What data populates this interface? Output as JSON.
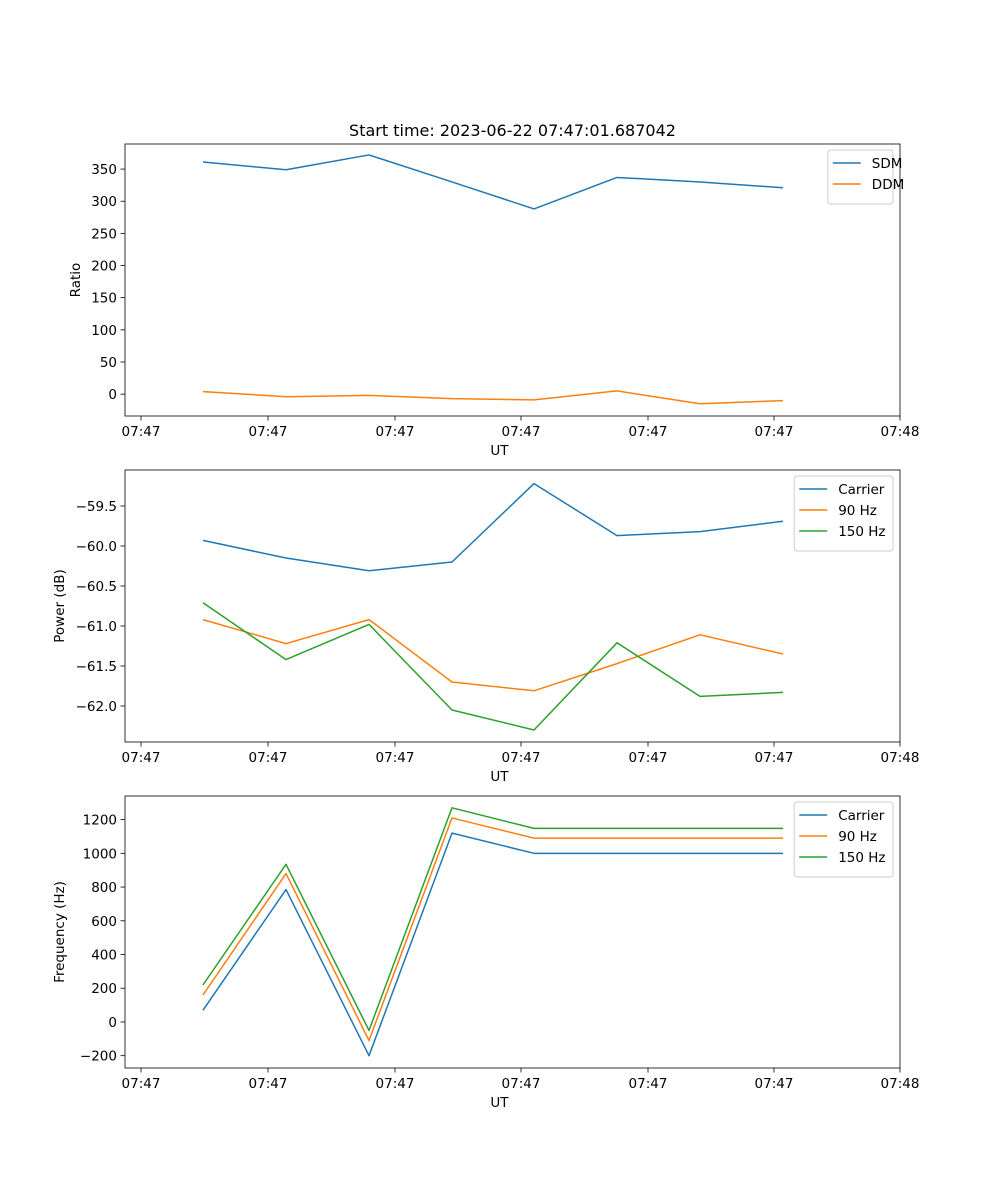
{
  "figure": {
    "title": "Start time: 2023-06-22 07:47:01.687042"
  },
  "chart_data": [
    {
      "type": "line",
      "xlabel": "UT",
      "ylabel": "Ratio",
      "x_tick_labels": [
        "07:47",
        "07:47",
        "07:47",
        "07:47",
        "07:47",
        "07:47",
        "07:48"
      ],
      "y_ticks": [
        0,
        50,
        100,
        150,
        200,
        250,
        300,
        350
      ],
      "y_tick_labels": [
        "0",
        "50",
        "100",
        "150",
        "200",
        "250",
        "300",
        "350"
      ],
      "ylim": [
        -34,
        389
      ],
      "grid": false,
      "legend": "top-right",
      "series": [
        {
          "name": "SDM",
          "color": "#1f77b4",
          "values": [
            361,
            349,
            372,
            330,
            288,
            337,
            330,
            321
          ]
        },
        {
          "name": "DDM",
          "color": "#ff7f0e",
          "values": [
            4,
            -4,
            -2,
            -7,
            -9,
            5,
            -15,
            -10
          ]
        }
      ]
    },
    {
      "type": "line",
      "xlabel": "UT",
      "ylabel": "Power (dB)",
      "x_tick_labels": [
        "07:47",
        "07:47",
        "07:47",
        "07:47",
        "07:47",
        "07:47",
        "07:48"
      ],
      "y_ticks": [
        -62.0,
        -61.5,
        -61.0,
        -60.5,
        -60.0,
        -59.5
      ],
      "y_tick_labels": [
        "−62.0",
        "−61.5",
        "−61.0",
        "−60.5",
        "−60.0",
        "−59.5"
      ],
      "ylim": [
        -62.45,
        -59.05
      ],
      "grid": false,
      "legend": "top-right",
      "series": [
        {
          "name": "Carrier",
          "color": "#1f77b4",
          "values": [
            -59.93,
            -60.15,
            -60.31,
            -60.2,
            -59.22,
            -59.87,
            -59.82,
            -59.69
          ]
        },
        {
          "name": "90 Hz",
          "color": "#ff7f0e",
          "values": [
            -60.92,
            -61.22,
            -60.92,
            -61.7,
            -61.81,
            -61.47,
            -61.11,
            -61.35
          ]
        },
        {
          "name": "150 Hz",
          "color": "#2ca02c",
          "values": [
            -60.71,
            -61.42,
            -60.98,
            -62.05,
            -62.3,
            -61.21,
            -61.88,
            -61.83
          ]
        }
      ]
    },
    {
      "type": "line",
      "xlabel": "UT",
      "ylabel": "Frequency (Hz)",
      "x_tick_labels": [
        "07:47",
        "07:47",
        "07:47",
        "07:47",
        "07:47",
        "07:47",
        "07:48"
      ],
      "y_ticks": [
        -200,
        0,
        200,
        400,
        600,
        800,
        1000,
        1200
      ],
      "y_tick_labels": [
        "−200",
        "0",
        "200",
        "400",
        "600",
        "800",
        "1000",
        "1200"
      ],
      "ylim": [
        -273,
        1340
      ],
      "grid": false,
      "legend": "top-right",
      "series": [
        {
          "name": "Carrier",
          "color": "#1f77b4",
          "values": [
            70,
            785,
            -200,
            1120,
            1000,
            1000,
            1000,
            1000
          ]
        },
        {
          "name": "90 Hz",
          "color": "#ff7f0e",
          "values": [
            160,
            880,
            -110,
            1210,
            1090,
            1090,
            1090,
            1090
          ]
        },
        {
          "name": "150 Hz",
          "color": "#2ca02c",
          "values": [
            220,
            935,
            -50,
            1270,
            1148,
            1148,
            1148,
            1148
          ]
        }
      ]
    }
  ]
}
